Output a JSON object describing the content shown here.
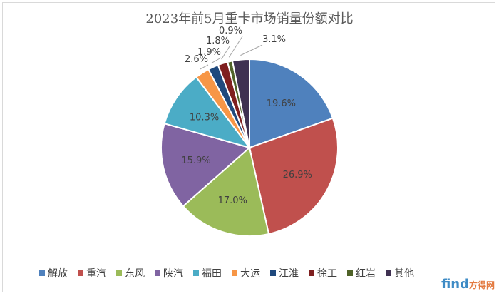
{
  "chart_data": {
    "type": "pie",
    "title": "2023年前5月重卡市场销量份额对比",
    "categories": [
      "解放",
      "重汽",
      "东风",
      "陕汽",
      "福田",
      "大运",
      "江淮",
      "徐工",
      "红岩",
      "其他"
    ],
    "values": [
      19.6,
      26.9,
      17.0,
      15.9,
      10.3,
      2.6,
      1.9,
      1.8,
      0.9,
      3.1
    ],
    "labels": [
      "19.6%",
      "26.9%",
      "17.0%",
      "15.9%",
      "10.3%",
      "2.6%",
      "1.9%",
      "1.8%",
      "0.9%",
      "3.1%"
    ],
    "colors": [
      "#4f81bd",
      "#c0504d",
      "#9bbb59",
      "#8064a2",
      "#4bacc6",
      "#f79646",
      "#1f497d",
      "#7f1f1f",
      "#4f6228",
      "#3f3151"
    ],
    "legend_position": "bottom"
  },
  "watermark": {
    "brand": "find",
    "suffix": "方得网"
  }
}
